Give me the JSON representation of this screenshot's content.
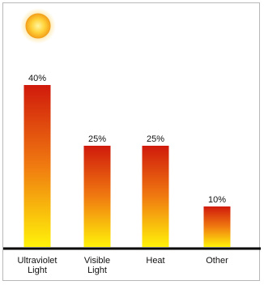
{
  "chart_data": {
    "type": "bar",
    "categories": [
      [
        "Ultraviolet",
        "Light"
      ],
      [
        "Visible",
        "Light"
      ],
      [
        "Heat"
      ],
      [
        "Other"
      ]
    ],
    "values": [
      40,
      25,
      25,
      10
    ],
    "value_labels": [
      "40%",
      "25%",
      "25%",
      "10%"
    ],
    "ylim": [
      0,
      45
    ],
    "grid": false,
    "colors": {
      "top": "#d01a0c",
      "mid": "#f07a10",
      "bottom": "#fff20a",
      "axis": "#000000"
    },
    "decoration": "sun-icon"
  }
}
